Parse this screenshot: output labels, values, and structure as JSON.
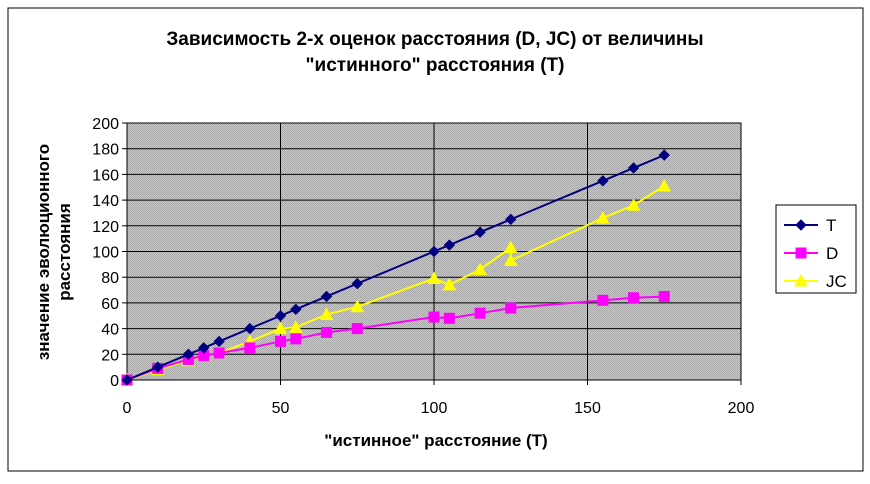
{
  "chart_data": {
    "type": "line",
    "title": "Зависимость 2-х оценок расстояния (D, JC) от величины \"истинного\" расстояния (T)",
    "title_lines": [
      "Зависимость 2-х оценок расстояния (D, JC) от величины",
      "\"истинного\" расстояния (T)"
    ],
    "xlabel": "\"истинное\" расстояние (T)",
    "ylabel_lines": [
      "значение эволюционного",
      "расстояния"
    ],
    "xlim": [
      0,
      200
    ],
    "ylim": [
      0,
      200
    ],
    "x_ticks": [
      0,
      50,
      100,
      150,
      200
    ],
    "y_ticks": [
      0,
      20,
      40,
      60,
      80,
      100,
      120,
      140,
      160,
      180,
      200
    ],
    "grid": true,
    "legend_position": "right",
    "series": [
      {
        "name": "T",
        "color": "#000080",
        "marker": "diamond",
        "x": [
          0,
          10,
          20,
          25,
          30,
          40,
          50,
          55,
          65,
          75,
          100,
          105,
          115,
          125,
          155,
          165,
          175
        ],
        "y": [
          0,
          10,
          20,
          25,
          30,
          40,
          50,
          55,
          65,
          75,
          100,
          105,
          115,
          125,
          155,
          165,
          175
        ]
      },
      {
        "name": "D",
        "color": "#ff00ff",
        "marker": "square",
        "x": [
          0,
          10,
          20,
          25,
          30,
          40,
          50,
          55,
          65,
          75,
          100,
          105,
          115,
          125,
          155,
          165,
          175
        ],
        "y": [
          0,
          9,
          16,
          19,
          21,
          25,
          30,
          32,
          37,
          40,
          49,
          48,
          52,
          56,
          62,
          64,
          65
        ]
      },
      {
        "name": "JC",
        "color": "#ffff00",
        "marker": "triangle",
        "x": [
          0,
          10,
          20,
          25,
          30,
          40,
          50,
          55,
          65,
          75,
          100,
          105,
          115,
          125,
          125,
          155,
          165,
          175
        ],
        "y": [
          0,
          8,
          15,
          19,
          21,
          30,
          40,
          41,
          51,
          57,
          79,
          74,
          86,
          103,
          93,
          126,
          136,
          151
        ]
      }
    ]
  }
}
